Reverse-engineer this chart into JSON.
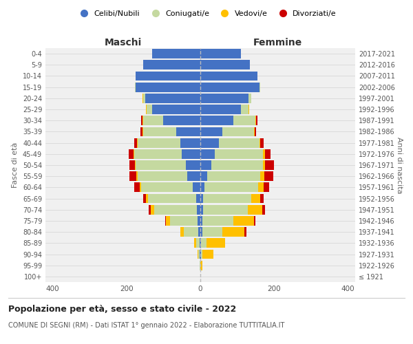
{
  "age_groups": [
    "100+",
    "95-99",
    "90-94",
    "85-89",
    "80-84",
    "75-79",
    "70-74",
    "65-69",
    "60-64",
    "55-59",
    "50-54",
    "45-49",
    "40-44",
    "35-39",
    "30-34",
    "25-29",
    "20-24",
    "15-19",
    "10-14",
    "5-9",
    "0-4"
  ],
  "birth_years": [
    "≤ 1921",
    "1922-1926",
    "1927-1931",
    "1932-1936",
    "1937-1941",
    "1942-1946",
    "1947-1951",
    "1952-1956",
    "1957-1961",
    "1962-1966",
    "1967-1971",
    "1972-1976",
    "1977-1981",
    "1982-1986",
    "1987-1991",
    "1992-1996",
    "1997-2001",
    "2002-2006",
    "2007-2011",
    "2012-2016",
    "2017-2021"
  ],
  "maschi": {
    "celibi": [
      0,
      0,
      1,
      2,
      5,
      8,
      10,
      12,
      20,
      35,
      40,
      50,
      55,
      65,
      100,
      130,
      150,
      175,
      175,
      155,
      130
    ],
    "coniugati": [
      0,
      2,
      5,
      10,
      40,
      75,
      115,
      130,
      140,
      135,
      135,
      130,
      115,
      90,
      55,
      15,
      5,
      2,
      0,
      0,
      0
    ],
    "vedovi": [
      0,
      0,
      2,
      5,
      10,
      10,
      10,
      5,
      5,
      3,
      3,
      2,
      2,
      2,
      2,
      2,
      1,
      0,
      0,
      0,
      0
    ],
    "divorziati": [
      0,
      0,
      0,
      0,
      0,
      3,
      5,
      8,
      15,
      20,
      15,
      12,
      8,
      5,
      3,
      0,
      0,
      0,
      0,
      0,
      0
    ]
  },
  "femmine": {
    "nubili": [
      0,
      0,
      1,
      2,
      5,
      5,
      8,
      8,
      12,
      18,
      30,
      40,
      50,
      60,
      90,
      110,
      130,
      160,
      155,
      135,
      110
    ],
    "coniugate": [
      0,
      0,
      5,
      15,
      55,
      85,
      120,
      130,
      145,
      145,
      140,
      130,
      110,
      85,
      60,
      20,
      8,
      3,
      0,
      0,
      0
    ],
    "vedove": [
      0,
      5,
      30,
      50,
      60,
      55,
      40,
      25,
      15,
      10,
      5,
      5,
      3,
      2,
      2,
      2,
      1,
      0,
      0,
      0,
      0
    ],
    "divorziate": [
      0,
      0,
      0,
      0,
      5,
      5,
      8,
      8,
      15,
      25,
      25,
      15,
      8,
      5,
      3,
      1,
      0,
      0,
      0,
      0,
      0
    ]
  },
  "colors": {
    "celibi": "#4472c4",
    "coniugati": "#c5d9a0",
    "vedovi": "#ffc000",
    "divorziati": "#cc0000"
  },
  "xlim": 420,
  "title": "Popolazione per età, sesso e stato civile - 2022",
  "subtitle": "COMUNE DI SEGNI (RM) - Dati ISTAT 1° gennaio 2022 - Elaborazione TUTTITALIA.IT",
  "xlabel_left": "Maschi",
  "xlabel_right": "Femmine",
  "ylabel": "Fasce di età",
  "ylabel_right": "Anni di nascita",
  "bg_color": "#ffffff",
  "plot_bg": "#f0f0f0",
  "grid_color": "#cccccc"
}
